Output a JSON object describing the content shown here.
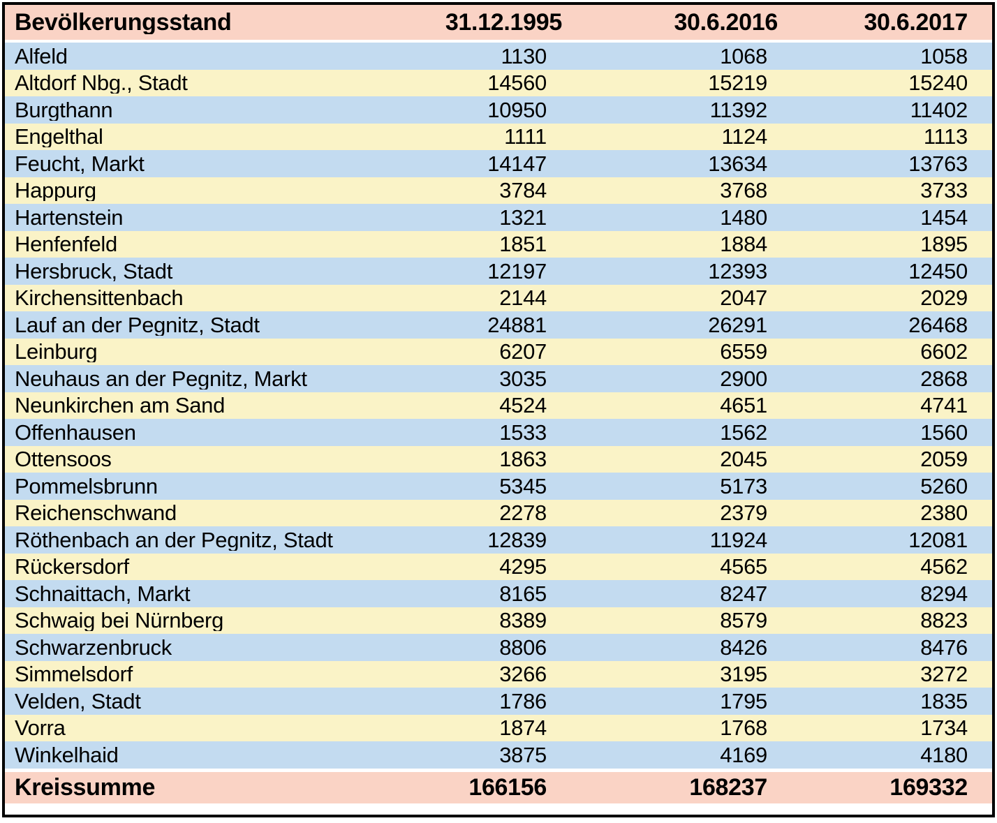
{
  "chart_data": {
    "type": "table",
    "title": "Bevölkerungsstand",
    "columns": [
      "31.12.1995",
      "30.6.2016",
      "30.6.2017"
    ],
    "rows": [
      {
        "name": "Alfeld",
        "values": [
          1130,
          1068,
          1058
        ]
      },
      {
        "name": "Altdorf Nbg., Stadt",
        "values": [
          14560,
          15219,
          15240
        ]
      },
      {
        "name": "Burgthann",
        "values": [
          10950,
          11392,
          11402
        ]
      },
      {
        "name": "Engelthal",
        "values": [
          1111,
          1124,
          1113
        ]
      },
      {
        "name": "Feucht, Markt",
        "values": [
          14147,
          13634,
          13763
        ]
      },
      {
        "name": "Happurg",
        "values": [
          3784,
          3768,
          3733
        ]
      },
      {
        "name": "Hartenstein",
        "values": [
          1321,
          1480,
          1454
        ]
      },
      {
        "name": "Henfenfeld",
        "values": [
          1851,
          1884,
          1895
        ]
      },
      {
        "name": "Hersbruck, Stadt",
        "values": [
          12197,
          12393,
          12450
        ]
      },
      {
        "name": "Kirchensittenbach",
        "values": [
          2144,
          2047,
          2029
        ]
      },
      {
        "name": "Lauf an der Pegnitz, Stadt",
        "values": [
          24881,
          26291,
          26468
        ]
      },
      {
        "name": "Leinburg",
        "values": [
          6207,
          6559,
          6602
        ]
      },
      {
        "name": "Neuhaus an der Pegnitz, Markt",
        "values": [
          3035,
          2900,
          2868
        ]
      },
      {
        "name": "Neunkirchen am Sand",
        "values": [
          4524,
          4651,
          4741
        ]
      },
      {
        "name": "Offenhausen",
        "values": [
          1533,
          1562,
          1560
        ]
      },
      {
        "name": "Ottensoos",
        "values": [
          1863,
          2045,
          2059
        ]
      },
      {
        "name": "Pommelsbrunn",
        "values": [
          5345,
          5173,
          5260
        ]
      },
      {
        "name": "Reichenschwand",
        "values": [
          2278,
          2379,
          2380
        ]
      },
      {
        "name": "Röthenbach an der Pegnitz, Stadt",
        "values": [
          12839,
          11924,
          12081
        ]
      },
      {
        "name": "Rückersdorf",
        "values": [
          4295,
          4565,
          4562
        ]
      },
      {
        "name": "Schnaittach, Markt",
        "values": [
          8165,
          8247,
          8294
        ]
      },
      {
        "name": "Schwaig bei Nürnberg",
        "values": [
          8389,
          8579,
          8823
        ]
      },
      {
        "name": "Schwarzenbruck",
        "values": [
          8806,
          8426,
          8476
        ]
      },
      {
        "name": "Simmelsdorf",
        "values": [
          3266,
          3195,
          3272
        ]
      },
      {
        "name": "Velden, Stadt",
        "values": [
          1786,
          1795,
          1835
        ]
      },
      {
        "name": "Vorra",
        "values": [
          1874,
          1768,
          1734
        ]
      },
      {
        "name": "Winkelhaid",
        "values": [
          3875,
          4169,
          4180
        ]
      }
    ],
    "footer": {
      "label": "Kreissumme",
      "values": [
        166156,
        168237,
        169332
      ]
    },
    "layout": {
      "striping": "alternating blue/yellow starting blue",
      "header_footer_highlighted": true,
      "grid": "none, solid row bands only",
      "value_alignment": "right"
    }
  },
  "colors": {
    "header_footer_bg": "#fad3c5",
    "row_blue": "#c3dbf0",
    "row_yellow": "#faf3c7",
    "border": "#000000",
    "text": "#000000"
  }
}
